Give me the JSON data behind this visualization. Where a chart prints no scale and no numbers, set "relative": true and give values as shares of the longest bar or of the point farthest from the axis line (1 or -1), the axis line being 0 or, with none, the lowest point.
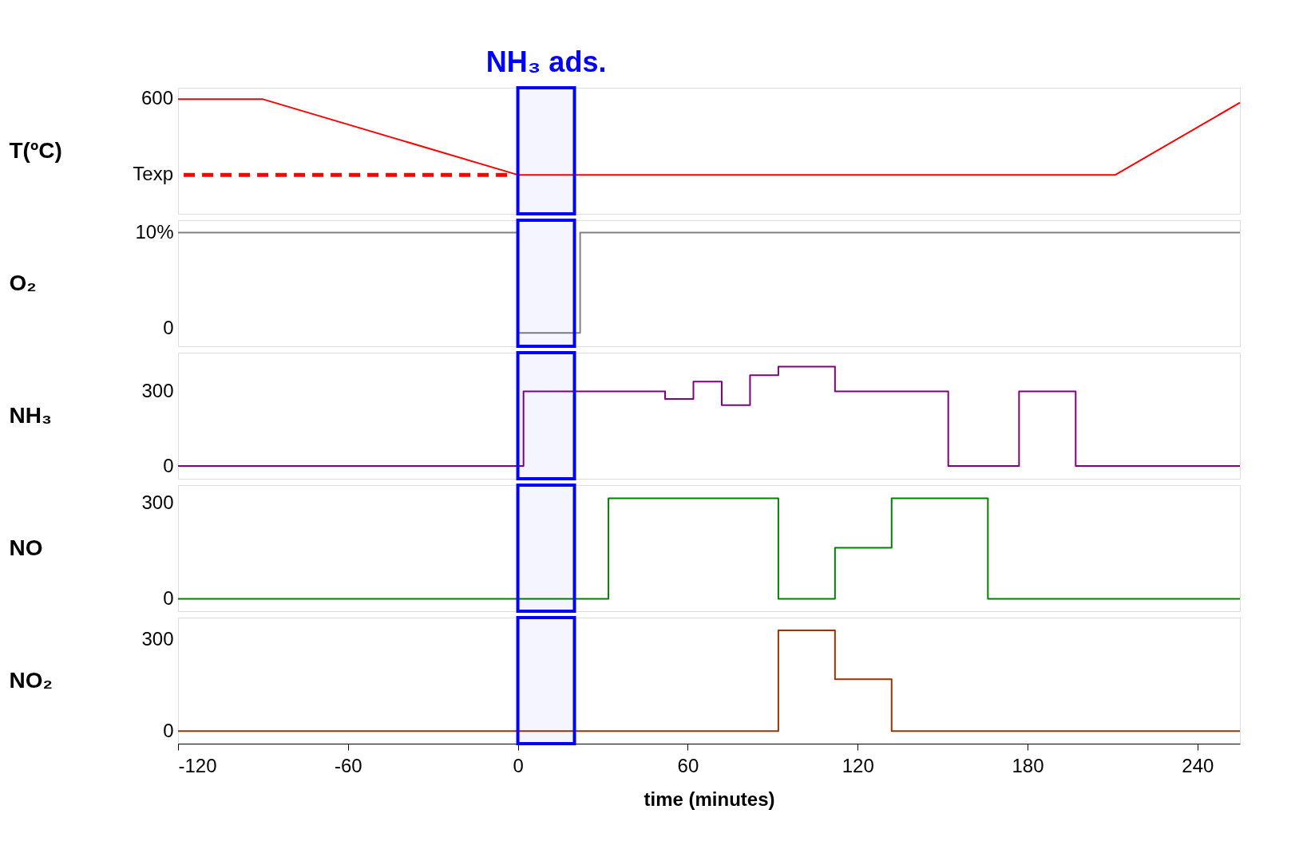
{
  "chart_data": [
    {
      "type": "line",
      "ylabel": "T(ºC)",
      "xlim": [
        -120,
        255
      ],
      "xticks": [
        -120,
        -60,
        0,
        60,
        120,
        180,
        240
      ],
      "relative": true,
      "tick_labels": "y",
      "annotations": [
        "600",
        "Texp"
      ],
      "bands": [
        {
          "axis": "x",
          "from": 0,
          "to": 20,
          "label": "NH₃ ads.",
          "color": "#0000ff"
        }
      ],
      "series": [
        {
          "color": "#ff0000",
          "x": [
            -120,
            -90,
            0,
            211,
            255
          ],
          "values": [
            1,
            1,
            0.34,
            0.34,
            0.97
          ]
        },
        {
          "color": "#ff0000",
          "line_style": "dashed",
          "x": [
            -118,
            -2
          ],
          "values": [
            0.34,
            0.34
          ]
        }
      ]
    },
    {
      "type": "step",
      "ylabel": "O₂",
      "xlim": [
        -120,
        255
      ],
      "xticks": [
        -120,
        -60,
        0,
        60,
        120,
        180,
        240
      ],
      "ylim": [
        -1.9,
        11.3
      ],
      "yticks": [
        {
          "value": 10,
          "label": "10%"
        },
        0
      ],
      "tick_labels": "y",
      "bands": [
        {
          "axis": "x",
          "from": 0,
          "to": 20,
          "color": "#0000ff"
        }
      ],
      "series": [
        {
          "color": "#808080",
          "x": [
            -120,
            0,
            22,
            255
          ],
          "values": [
            10,
            -0.5,
            10,
            10
          ]
        }
      ]
    },
    {
      "type": "step",
      "ylabel": "NH₃",
      "xlim": [
        -120,
        255
      ],
      "xticks": [
        -120,
        -60,
        0,
        60,
        120,
        180,
        240
      ],
      "ylim": [
        -51,
        456
      ],
      "yticks": [
        300,
        0
      ],
      "tick_labels": "y",
      "bands": [
        {
          "axis": "x",
          "from": 0,
          "to": 20,
          "color": "#0000ff"
        }
      ],
      "series": [
        {
          "color": "#800080",
          "x": [
            -120,
            2,
            52,
            62,
            72,
            82,
            92,
            112,
            152,
            177,
            197,
            255
          ],
          "values": [
            0,
            300,
            270,
            340,
            245,
            365,
            400,
            300,
            0,
            300,
            0,
            0
          ]
        }
      ]
    },
    {
      "type": "step",
      "ylabel": "NO",
      "xlim": [
        -120,
        255
      ],
      "xticks": [
        -120,
        -60,
        0,
        60,
        120,
        180,
        240
      ],
      "ylim": [
        -39,
        356
      ],
      "yticks": [
        300,
        0
      ],
      "tick_labels": "y",
      "bands": [
        {
          "axis": "x",
          "from": 0,
          "to": 20,
          "color": "#0000ff"
        }
      ],
      "series": [
        {
          "color": "#008000",
          "x": [
            -120,
            32,
            92,
            112,
            132,
            166,
            255
          ],
          "values": [
            0,
            315,
            0,
            160,
            315,
            0,
            0
          ]
        }
      ]
    },
    {
      "type": "step",
      "ylabel": "NO₂",
      "xlabel": "time (minutes)",
      "xlim": [
        -120,
        255
      ],
      "xticks": [
        -120,
        -60,
        0,
        60,
        120,
        180,
        240
      ],
      "ylim": [
        -41,
        372
      ],
      "yticks": [
        300,
        0
      ],
      "bands": [
        {
          "axis": "x",
          "from": 0,
          "to": 20,
          "color": "#0000ff"
        }
      ],
      "series": [
        {
          "color": "#993300",
          "x": [
            -120,
            92,
            112,
            132,
            255
          ],
          "values": [
            0,
            330,
            170,
            0,
            0
          ]
        }
      ]
    }
  ]
}
